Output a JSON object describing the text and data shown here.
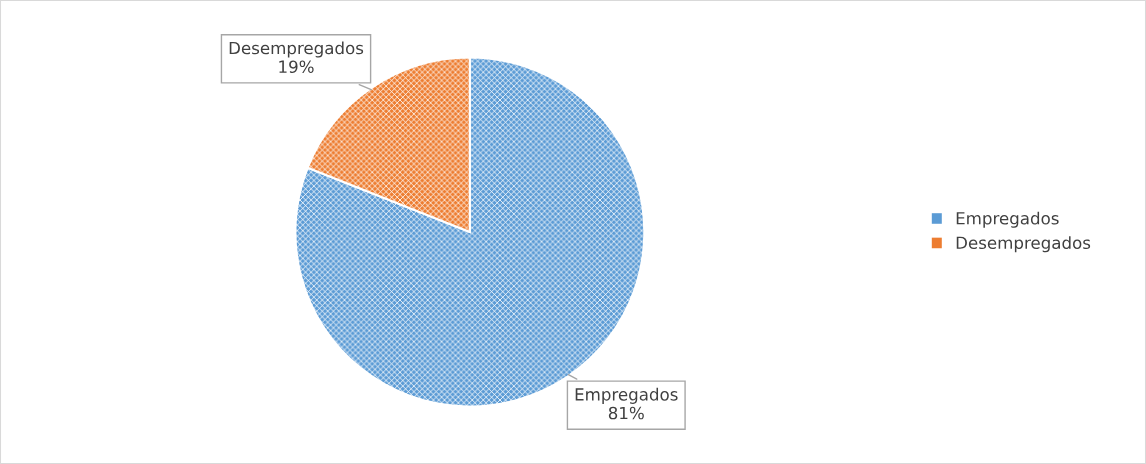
{
  "chart_data": {
    "type": "pie",
    "categories": [
      "Empregados",
      "Desempregados"
    ],
    "values": [
      81,
      19
    ],
    "colors": [
      "#5b9bd5",
      "#ed7d31"
    ],
    "value_labels": [
      "81%",
      "19%"
    ],
    "legend": "right"
  }
}
